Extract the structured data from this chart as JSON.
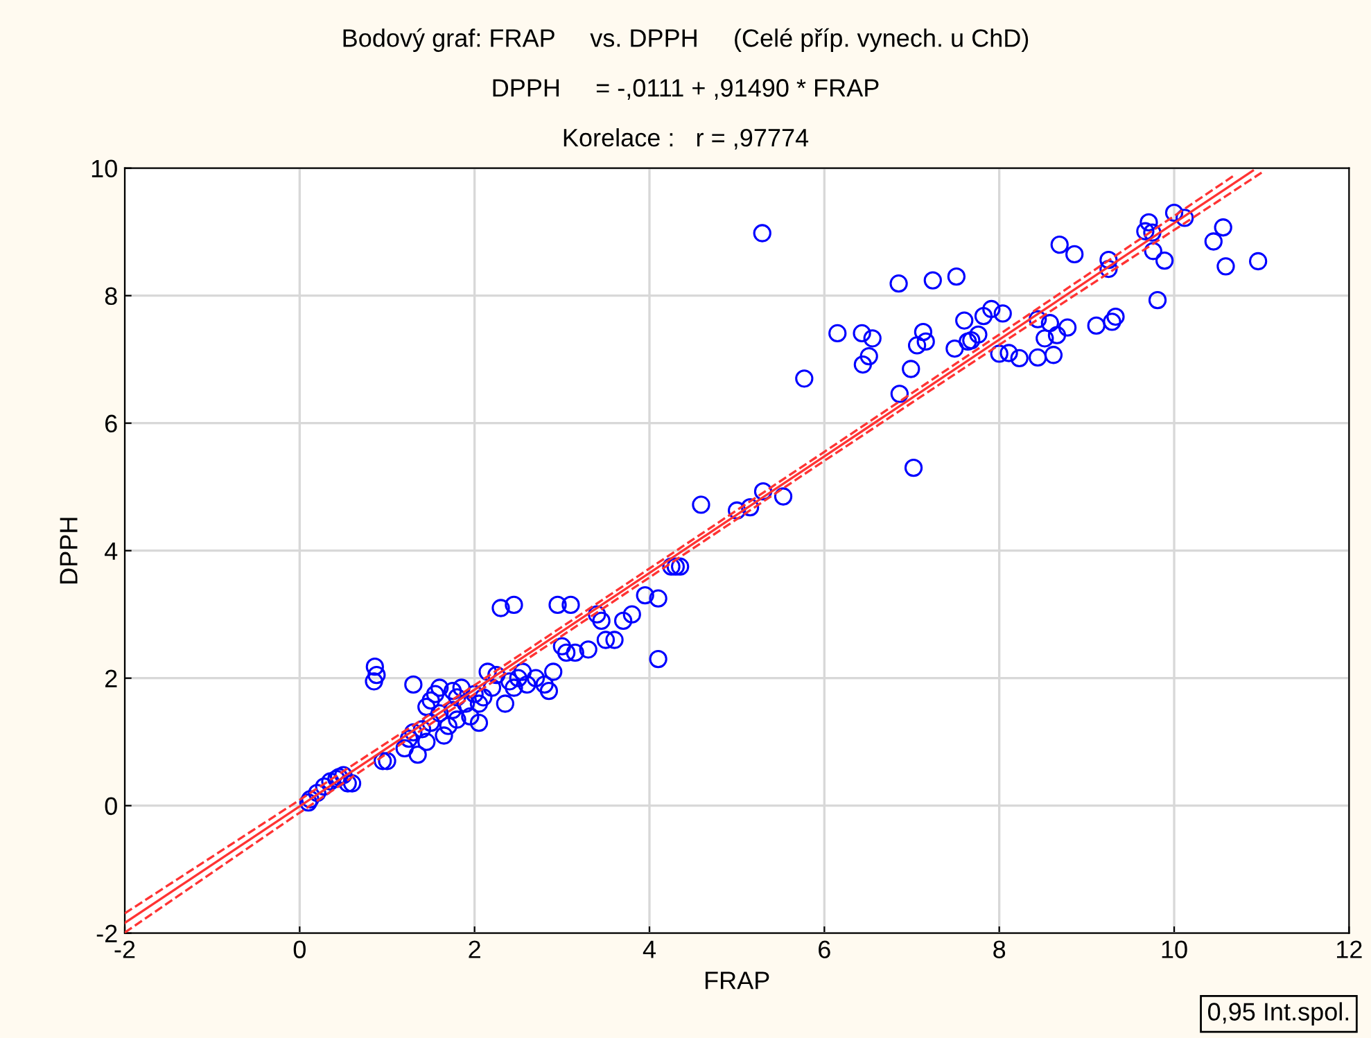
{
  "chart_data": {
    "type": "scatter",
    "title": "Bodový graf: FRAP     vs. DPPH     (Celé příp. vynech. u ChD)",
    "subtitle": "DPPH     = -,0111 + ,91490 * FRAP",
    "annotations": [
      "Korelace :   r = ,97774",
      "0,95 Int.spol."
    ],
    "xlabel": "FRAP",
    "ylabel": "DPPH",
    "xlim": [
      -2,
      12
    ],
    "ylim": [
      -2,
      10
    ],
    "xticks": [
      -2,
      0,
      2,
      4,
      6,
      8,
      10,
      12
    ],
    "yticks": [
      -2,
      0,
      2,
      4,
      6,
      8,
      10
    ],
    "grid": true,
    "marker": "circle",
    "series": [
      {
        "color": "#0000ff",
        "x": [
          0.1,
          0.12,
          0.2,
          0.28,
          0.35,
          0.42,
          0.5,
          0.55,
          0.6,
          0.45,
          0.85,
          0.88,
          0.86,
          0.95,
          1.0,
          1.2,
          1.25,
          1.3,
          1.35,
          1.4,
          1.45,
          1.5,
          1.45,
          1.5,
          1.55,
          1.6,
          1.65,
          1.7,
          1.75,
          1.8,
          1.85,
          1.9,
          1.95,
          1.3,
          1.6,
          1.75,
          1.8,
          2.0,
          2.05,
          2.05,
          2.1,
          2.15,
          2.2,
          2.25,
          2.3,
          2.35,
          2.4,
          2.45,
          2.45,
          2.5,
          2.55,
          2.6,
          2.7,
          2.8,
          2.85,
          2.9,
          2.95,
          3.0,
          3.05,
          3.1,
          3.15,
          3.3,
          3.4,
          3.45,
          3.5,
          3.6,
          3.7,
          3.8,
          3.95,
          4.1,
          4.1,
          4.25,
          4.3,
          4.35,
          4.59,
          5.0,
          5.15,
          5.3,
          5.53,
          5.29,
          5.77,
          6.85,
          7.24,
          7.51,
          6.15,
          6.43,
          6.55,
          6.51,
          6.44,
          6.99,
          6.86,
          7.02,
          7.13,
          7.16,
          7.06,
          7.49,
          7.6,
          7.64,
          7.68,
          7.76,
          7.82,
          7.91,
          8.04,
          8.0,
          8.11,
          8.23,
          8.44,
          8.44,
          8.58,
          8.52,
          8.66,
          8.78,
          8.62,
          8.69,
          8.86,
          9.25,
          9.25,
          9.71,
          9.67,
          9.75,
          9.76,
          9.89,
          10.0,
          10.12,
          10.56,
          10.45,
          10.59,
          10.96,
          9.81,
          9.33,
          9.29,
          9.11
        ],
        "values": [
          0.05,
          0.1,
          0.2,
          0.3,
          0.38,
          0.42,
          0.48,
          0.35,
          0.35,
          0.45,
          1.95,
          2.05,
          2.18,
          0.7,
          0.7,
          0.9,
          1.05,
          1.15,
          0.8,
          1.2,
          1.0,
          1.3,
          1.55,
          1.65,
          1.75,
          1.45,
          1.1,
          1.25,
          1.5,
          1.7,
          1.85,
          1.6,
          1.4,
          1.9,
          1.85,
          1.8,
          1.35,
          1.75,
          1.6,
          1.3,
          1.7,
          2.1,
          1.85,
          2.05,
          3.1,
          1.6,
          1.95,
          3.15,
          1.85,
          2.0,
          2.1,
          1.9,
          2.0,
          1.9,
          1.8,
          2.1,
          3.15,
          2.5,
          2.4,
          3.15,
          2.4,
          2.45,
          3.0,
          2.9,
          2.6,
          2.6,
          2.9,
          3.0,
          3.3,
          2.3,
          3.25,
          3.75,
          3.75,
          3.75,
          4.72,
          4.63,
          4.68,
          4.93,
          4.85,
          8.98,
          6.7,
          8.19,
          8.24,
          8.3,
          7.41,
          7.41,
          7.33,
          7.05,
          6.92,
          6.85,
          6.46,
          5.3,
          7.43,
          7.28,
          7.22,
          7.17,
          7.61,
          7.28,
          7.3,
          7.39,
          7.68,
          7.79,
          7.72,
          7.09,
          7.1,
          7.02,
          7.63,
          7.03,
          7.57,
          7.33,
          7.38,
          7.5,
          7.07,
          8.8,
          8.65,
          8.56,
          8.42,
          9.15,
          9.01,
          8.99,
          8.7,
          8.55,
          9.3,
          9.22,
          9.07,
          8.85,
          8.46,
          8.54,
          7.93,
          7.67,
          7.59,
          7.53
        ]
      },
      {
        "type": "line",
        "color": "#ff3333",
        "marker": "none",
        "line_style": "solid",
        "x": [
          -2,
          0,
          2,
          4,
          6,
          8,
          10,
          10.9
        ],
        "values": [
          -1.84,
          -0.01,
          1.82,
          3.65,
          5.48,
          7.31,
          9.14,
          9.96
        ]
      },
      {
        "type": "line",
        "color": "#ff3333",
        "marker": "none",
        "line_style": "dashed",
        "x": [
          -2,
          0,
          2,
          4,
          6,
          8,
          10,
          11
        ],
        "values": [
          -1.99,
          -0.11,
          1.75,
          3.58,
          5.41,
          7.23,
          9.03,
          9.93
        ]
      },
      {
        "type": "line",
        "color": "#ff3333",
        "marker": "none",
        "line_style": "dashed",
        "x": [
          -2,
          0,
          2,
          4,
          6,
          8,
          10,
          10.7
        ],
        "values": [
          -1.69,
          0.09,
          1.89,
          3.72,
          5.55,
          7.39,
          9.25,
          9.9
        ]
      }
    ]
  }
}
